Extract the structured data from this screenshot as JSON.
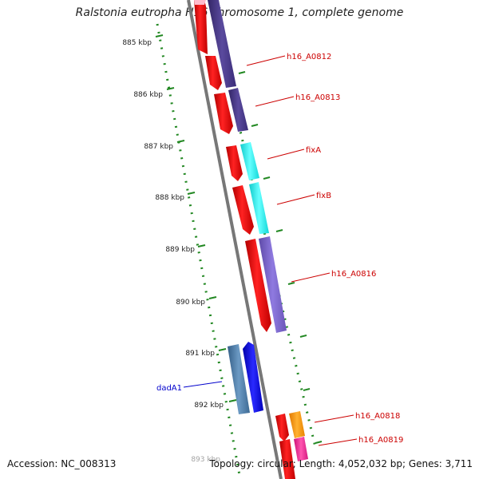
{
  "title": "Ralstonia eutropha H16 chromosome 1, complete genome",
  "ruler": {
    "ticks": [
      "885 kbp",
      "886 kbp",
      "887 kbp",
      "888 kbp",
      "889 kbp",
      "890 kbp",
      "891 kbp",
      "892 kbp",
      "893 kbp"
    ]
  },
  "genes": [
    {
      "name": "h16_A0812",
      "color": "#cc0000"
    },
    {
      "name": "h16_A0813",
      "color": "#cc0000"
    },
    {
      "name": "fixA",
      "color": "#cc0000"
    },
    {
      "name": "fixB",
      "color": "#cc0000"
    },
    {
      "name": "h16_A0816",
      "color": "#cc0000"
    },
    {
      "name": "dadA1",
      "color": "#0000cc"
    },
    {
      "name": "h16_A0818",
      "color": "#cc0000"
    },
    {
      "name": "h16_A0819",
      "color": "#cc0000"
    }
  ],
  "colors": {
    "strand_red": "#ee1111",
    "strand_blue": "#1111dd",
    "purple_dark": "#4a3a8a",
    "purple_light": "#7b66cc",
    "cyan": "#22eeee",
    "steel_blue": "#4a7aa8",
    "orange": "#ff9900",
    "pink": "#ee3399",
    "ruler_green": "#228822",
    "backbone_gray": "#777777"
  },
  "footer": {
    "accession": "Accession: NC_008313",
    "summary": "Topology: circular; Length: 4,052,032 bp; Genes: 3,711"
  }
}
